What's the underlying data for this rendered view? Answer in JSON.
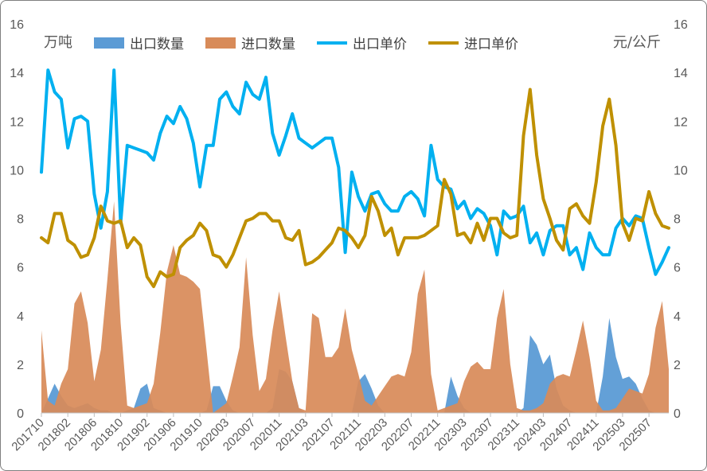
{
  "chart_data": {
    "type": "area",
    "start_month": "2017-10",
    "x_ticks": [
      "201710",
      "201802",
      "201806",
      "201810",
      "201902",
      "201906",
      "201910",
      "202003",
      "202007",
      "202011",
      "202103",
      "202107",
      "202111",
      "202203",
      "202207",
      "202211",
      "202303",
      "202307",
      "202311",
      "202403",
      "202407",
      "202411",
      "202503",
      "202507"
    ],
    "y_left": {
      "label": "万吨",
      "ylim": [
        0,
        16
      ],
      "ticks": [
        "0",
        "2",
        "4",
        "6",
        "8",
        "10",
        "12",
        "14",
        "16"
      ]
    },
    "y_right": {
      "label": "元/公斤",
      "ylim": [
        0,
        16
      ],
      "ticks": [
        "0",
        "2",
        "4",
        "6",
        "8",
        "10",
        "12",
        "14",
        "16"
      ]
    },
    "grid": false,
    "legend_position": "top",
    "series": [
      {
        "name": "出口数量",
        "kind": "area",
        "axis": "left",
        "color": "#5b9bd5",
        "x": [
          0,
          1,
          2,
          3,
          4,
          5,
          6,
          7,
          8,
          9,
          10,
          11,
          12,
          13,
          14,
          15,
          16,
          17,
          18,
          19,
          20,
          21,
          22,
          23,
          24,
          25,
          26,
          27,
          28,
          29,
          30,
          31,
          32,
          33,
          34,
          35,
          36,
          37,
          38,
          39,
          40,
          41,
          42,
          43,
          44,
          45,
          46,
          47,
          48,
          49,
          50,
          51,
          52,
          53,
          54,
          55,
          56,
          57,
          58,
          59,
          60,
          61,
          62,
          63,
          64,
          65,
          66,
          67,
          68,
          69,
          70,
          71,
          72,
          73,
          74,
          75,
          76,
          77,
          78,
          79,
          80,
          81,
          82,
          83,
          84,
          85,
          86,
          87,
          88,
          89,
          90,
          91,
          92,
          93,
          94,
          95
        ],
        "values": [
          0.0,
          0.6,
          1.2,
          0.7,
          0.3,
          0.2,
          0.3,
          0.4,
          0.2,
          0.1,
          0.1,
          0.0,
          0.0,
          0.1,
          0.2,
          1.0,
          1.2,
          0.2,
          0.1,
          0.0,
          0.0,
          0.0,
          0.0,
          0.0,
          0.0,
          0.1,
          1.1,
          1.1,
          0.5,
          0.1,
          0.0,
          0.0,
          0.0,
          0.0,
          0.0,
          0.2,
          1.8,
          1.7,
          1.3,
          0.2,
          0.0,
          0.0,
          0.0,
          0.0,
          0.0,
          0.0,
          0.0,
          0.0,
          1.3,
          1.6,
          1.0,
          0.3,
          0.0,
          0.0,
          0.0,
          0.0,
          0.0,
          0.0,
          0.0,
          0.0,
          0.0,
          0.0,
          1.5,
          0.7,
          0.2,
          0.0,
          0.0,
          0.0,
          0.0,
          0.0,
          0.0,
          0.0,
          0.0,
          0.2,
          3.2,
          2.8,
          2.0,
          2.4,
          1.0,
          0.3,
          0.1,
          0.0,
          0.0,
          0.0,
          0.0,
          1.5,
          3.9,
          2.3,
          1.4,
          1.5,
          1.2,
          0.6,
          0.1,
          0.0,
          0.0,
          0.0
        ]
      },
      {
        "name": "进口数量",
        "kind": "area",
        "axis": "left",
        "color": "#d88b59",
        "x": [
          0,
          1,
          2,
          3,
          4,
          5,
          6,
          7,
          8,
          9,
          10,
          11,
          12,
          13,
          14,
          15,
          16,
          17,
          18,
          19,
          20,
          21,
          22,
          23,
          24,
          25,
          26,
          27,
          28,
          29,
          30,
          31,
          32,
          33,
          34,
          35,
          36,
          37,
          38,
          39,
          40,
          41,
          42,
          43,
          44,
          45,
          46,
          47,
          48,
          49,
          50,
          51,
          52,
          53,
          54,
          55,
          56,
          57,
          58,
          59,
          60,
          61,
          62,
          63,
          64,
          65,
          66,
          67,
          68,
          69,
          70,
          71,
          72,
          73,
          74,
          75,
          76,
          77,
          78,
          79,
          80,
          81,
          82,
          83,
          84,
          85,
          86,
          87,
          88,
          89,
          90,
          91,
          92,
          93,
          94,
          95
        ],
        "values": [
          3.4,
          0.5,
          0.3,
          1.2,
          1.8,
          4.5,
          5.0,
          3.7,
          1.3,
          2.6,
          5.5,
          8.7,
          3.7,
          0.3,
          0.2,
          0.3,
          0.4,
          1.2,
          3.3,
          5.8,
          6.9,
          5.7,
          5.6,
          5.4,
          5.1,
          2.6,
          0.0,
          0.2,
          0.4,
          1.5,
          2.7,
          6.4,
          3.2,
          0.9,
          1.4,
          3.4,
          5.0,
          3.1,
          1.3,
          0.2,
          0.1,
          4.1,
          3.9,
          2.3,
          2.3,
          2.7,
          4.3,
          2.6,
          1.6,
          0.5,
          0.3,
          0.7,
          1.1,
          1.5,
          1.6,
          1.5,
          2.5,
          4.9,
          5.9,
          1.6,
          0.1,
          0.2,
          0.3,
          0.4,
          1.3,
          1.9,
          2.1,
          1.8,
          1.8,
          3.9,
          5.1,
          2.0,
          0.2,
          0.1,
          0.1,
          0.2,
          0.4,
          1.2,
          1.5,
          1.6,
          1.5,
          2.6,
          3.8,
          2.3,
          0.5,
          0.1,
          0.1,
          0.2,
          0.6,
          1.0,
          0.9,
          0.8,
          1.6,
          3.5,
          4.6,
          1.8
        ]
      },
      {
        "name": "出口单价",
        "kind": "line",
        "axis": "right",
        "color": "#00b0f0",
        "x": [
          0,
          1,
          2,
          3,
          4,
          5,
          6,
          7,
          8,
          9,
          10,
          11,
          12,
          13,
          14,
          15,
          16,
          17,
          18,
          19,
          20,
          21,
          22,
          23,
          24,
          25,
          26,
          27,
          28,
          29,
          30,
          31,
          32,
          33,
          34,
          35,
          36,
          37,
          38,
          39,
          40,
          41,
          42,
          43,
          44,
          45,
          46,
          47,
          48,
          49,
          50,
          51,
          52,
          53,
          54,
          55,
          56,
          57,
          58,
          59,
          60,
          61,
          62,
          63,
          64,
          65,
          66,
          67,
          68,
          69,
          70,
          71,
          72,
          73,
          74,
          75,
          76,
          77,
          78,
          79,
          80,
          81,
          82,
          83,
          84,
          85,
          86,
          87,
          88,
          89,
          90,
          91,
          92,
          93,
          94,
          95
        ],
        "values": [
          9.9,
          14.1,
          13.2,
          12.9,
          10.9,
          12.1,
          12.2,
          12.0,
          9.0,
          7.6,
          9.1,
          14.1,
          7.8,
          11.0,
          10.9,
          10.8,
          10.7,
          10.4,
          11.5,
          12.2,
          11.9,
          12.6,
          12.1,
          11.1,
          9.3,
          11.0,
          11.0,
          12.9,
          13.2,
          12.6,
          12.3,
          13.6,
          13.1,
          12.9,
          13.8,
          11.5,
          10.6,
          11.4,
          12.3,
          11.3,
          11.1,
          10.9,
          11.1,
          11.3,
          11.3,
          10.1,
          6.6,
          9.9,
          8.9,
          8.3,
          9.0,
          9.1,
          8.6,
          8.3,
          8.3,
          8.9,
          9.1,
          8.8,
          8.1,
          11.0,
          9.6,
          9.3,
          9.2,
          8.4,
          8.7,
          8.0,
          8.4,
          8.2,
          7.7,
          6.5,
          8.3,
          8.0,
          8.1,
          8.5,
          7.0,
          7.4,
          6.5,
          7.5,
          7.7,
          7.7,
          6.5,
          6.8,
          5.9,
          7.4,
          6.8,
          6.5,
          6.5,
          7.6,
          8.0,
          7.7,
          8.1,
          8.0,
          6.8,
          5.7,
          6.2,
          6.8
        ]
      },
      {
        "name": "进口单价",
        "kind": "line",
        "axis": "right",
        "color": "#bf9000",
        "x": [
          0,
          1,
          2,
          3,
          4,
          5,
          6,
          7,
          8,
          9,
          10,
          11,
          12,
          13,
          14,
          15,
          16,
          17,
          18,
          19,
          20,
          21,
          22,
          23,
          24,
          25,
          26,
          27,
          28,
          29,
          30,
          31,
          32,
          33,
          34,
          35,
          36,
          37,
          38,
          39,
          40,
          41,
          42,
          43,
          44,
          45,
          46,
          47,
          48,
          49,
          50,
          51,
          52,
          53,
          54,
          55,
          56,
          57,
          58,
          59,
          60,
          61,
          62,
          63,
          64,
          65,
          66,
          67,
          68,
          69,
          70,
          71,
          72,
          73,
          74,
          75,
          76,
          77,
          78,
          79,
          80,
          81,
          82,
          83,
          84,
          85,
          86,
          87,
          88,
          89,
          90,
          91,
          92,
          93,
          94,
          95
        ],
        "values": [
          7.2,
          7.0,
          8.2,
          8.2,
          7.1,
          6.9,
          6.4,
          6.5,
          7.2,
          8.5,
          7.9,
          7.8,
          7.9,
          6.8,
          7.2,
          6.9,
          5.6,
          5.2,
          5.8,
          5.6,
          5.7,
          6.8,
          7.1,
          7.3,
          7.8,
          7.5,
          6.5,
          6.4,
          6.0,
          6.5,
          7.2,
          7.9,
          8.0,
          8.2,
          8.2,
          7.9,
          7.9,
          7.2,
          7.1,
          7.5,
          6.1,
          6.2,
          6.4,
          6.7,
          7.0,
          7.6,
          7.5,
          7.2,
          6.8,
          7.3,
          8.9,
          8.3,
          7.3,
          7.6,
          6.5,
          7.2,
          7.2,
          7.2,
          7.3,
          7.5,
          7.7,
          9.6,
          9.0,
          7.3,
          7.4,
          7.0,
          7.8,
          7.1,
          8.0,
          8.0,
          7.4,
          7.2,
          7.3,
          11.4,
          13.3,
          10.6,
          8.8,
          8.0,
          7.1,
          6.7,
          8.4,
          8.6,
          8.1,
          7.8,
          9.5,
          11.8,
          12.9,
          11.0,
          7.8,
          7.1,
          8.0,
          7.9,
          9.1,
          8.2,
          7.7,
          7.6
        ]
      }
    ]
  }
}
